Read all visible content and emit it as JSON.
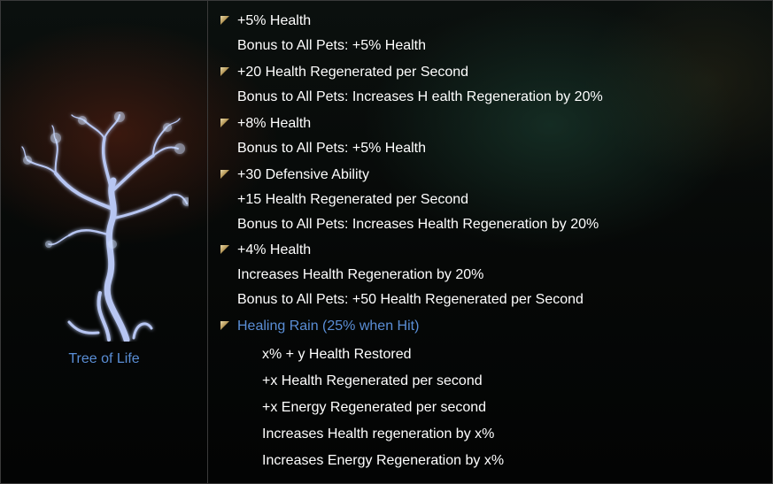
{
  "devotion": {
    "name": "Tree of Life",
    "icon": "tree-of-life-icon"
  },
  "tiers": [
    {
      "lines": [
        "+5% Health",
        "Bonus to All Pets: +5% Health"
      ]
    },
    {
      "lines": [
        "+20 Health Regenerated per Second",
        "Bonus to All Pets: Increases H ealth Regeneration by 20%"
      ]
    },
    {
      "lines": [
        "+8% Health",
        "Bonus to All Pets: +5% Health"
      ]
    },
    {
      "lines": [
        "+30 Defensive Ability",
        "+15 Health Regenerated per Second",
        "Bonus to All Pets: Increases Health Regeneration by 20%"
      ]
    },
    {
      "lines": [
        "+4% Health",
        "Increases Health Regeneration by 20%",
        "Bonus to All Pets: +50 Health Regenerated per Second"
      ]
    }
  ],
  "skill": {
    "title": "Healing Rain (25% when Hit)",
    "effects": [
      "x% + y Health Restored",
      "+x Health Regenerated per second",
      "+x Energy Regenerated per second",
      "Increases Health regeneration by x%",
      "Increases Energy Regeneration by x%"
    ]
  },
  "colors": {
    "accent_blue": "#5a8ed6",
    "text": "#ffffff",
    "bullet_gold": "#c8ad6e"
  }
}
